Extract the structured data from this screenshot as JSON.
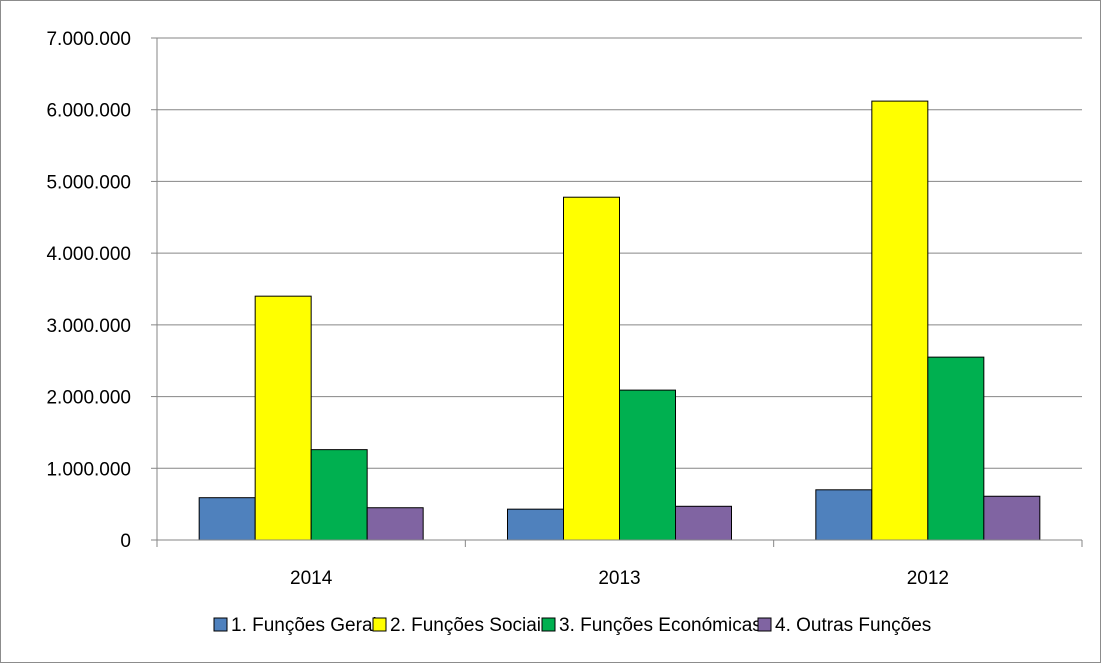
{
  "chart_data": {
    "type": "bar",
    "categories": [
      "2014",
      "2013",
      "2012"
    ],
    "series": [
      {
        "name": "1. Funções Gerais",
        "color": "#4f81bd",
        "values": [
          590000,
          430000,
          700000
        ]
      },
      {
        "name": "2. Funções Sociais",
        "color": "#ffff00",
        "values": [
          3400000,
          4780000,
          6120000
        ]
      },
      {
        "name": "3. Funções Económicas",
        "color": "#00b050",
        "values": [
          1260000,
          2090000,
          2550000
        ]
      },
      {
        "name": "4. Outras Funções",
        "color": "#8064a2",
        "values": [
          450000,
          470000,
          610000
        ]
      }
    ],
    "yticks": [
      "0",
      "1.000.000",
      "2.000.000",
      "3.000.000",
      "4.000.000",
      "5.000.000",
      "6.000.000",
      "7.000.000"
    ],
    "ylim": [
      0,
      7000000
    ],
    "grid": true,
    "legend_position": "bottom"
  }
}
